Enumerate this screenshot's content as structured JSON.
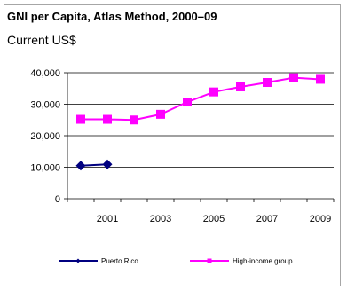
{
  "chart_data": {
    "type": "line",
    "title": "GNI per Capita, Atlas Method, 2000–09",
    "subtitle": "Current US$",
    "xlabel": "",
    "ylabel": "",
    "x": [
      2000,
      2001,
      2002,
      2003,
      2004,
      2005,
      2006,
      2007,
      2008,
      2009
    ],
    "x_tick_labels": [
      "2001",
      "2003",
      "2005",
      "2007",
      "2009"
    ],
    "y_tick_labels": [
      "0",
      "10,000",
      "20,000",
      "30,000",
      "40,000"
    ],
    "ylim": [
      0,
      40000
    ],
    "grid": "horizontal",
    "legend_position": "bottom",
    "series": [
      {
        "name": "Puerto Rico",
        "color": "#000080",
        "marker": "diamond",
        "values": [
          10500,
          10900,
          null,
          null,
          null,
          null,
          null,
          null,
          null,
          null
        ]
      },
      {
        "name": "High-income group",
        "color": "#ff00ff",
        "marker": "square",
        "values": [
          25200,
          25200,
          25000,
          26800,
          30700,
          33900,
          35500,
          36900,
          38400,
          37900
        ]
      }
    ]
  }
}
